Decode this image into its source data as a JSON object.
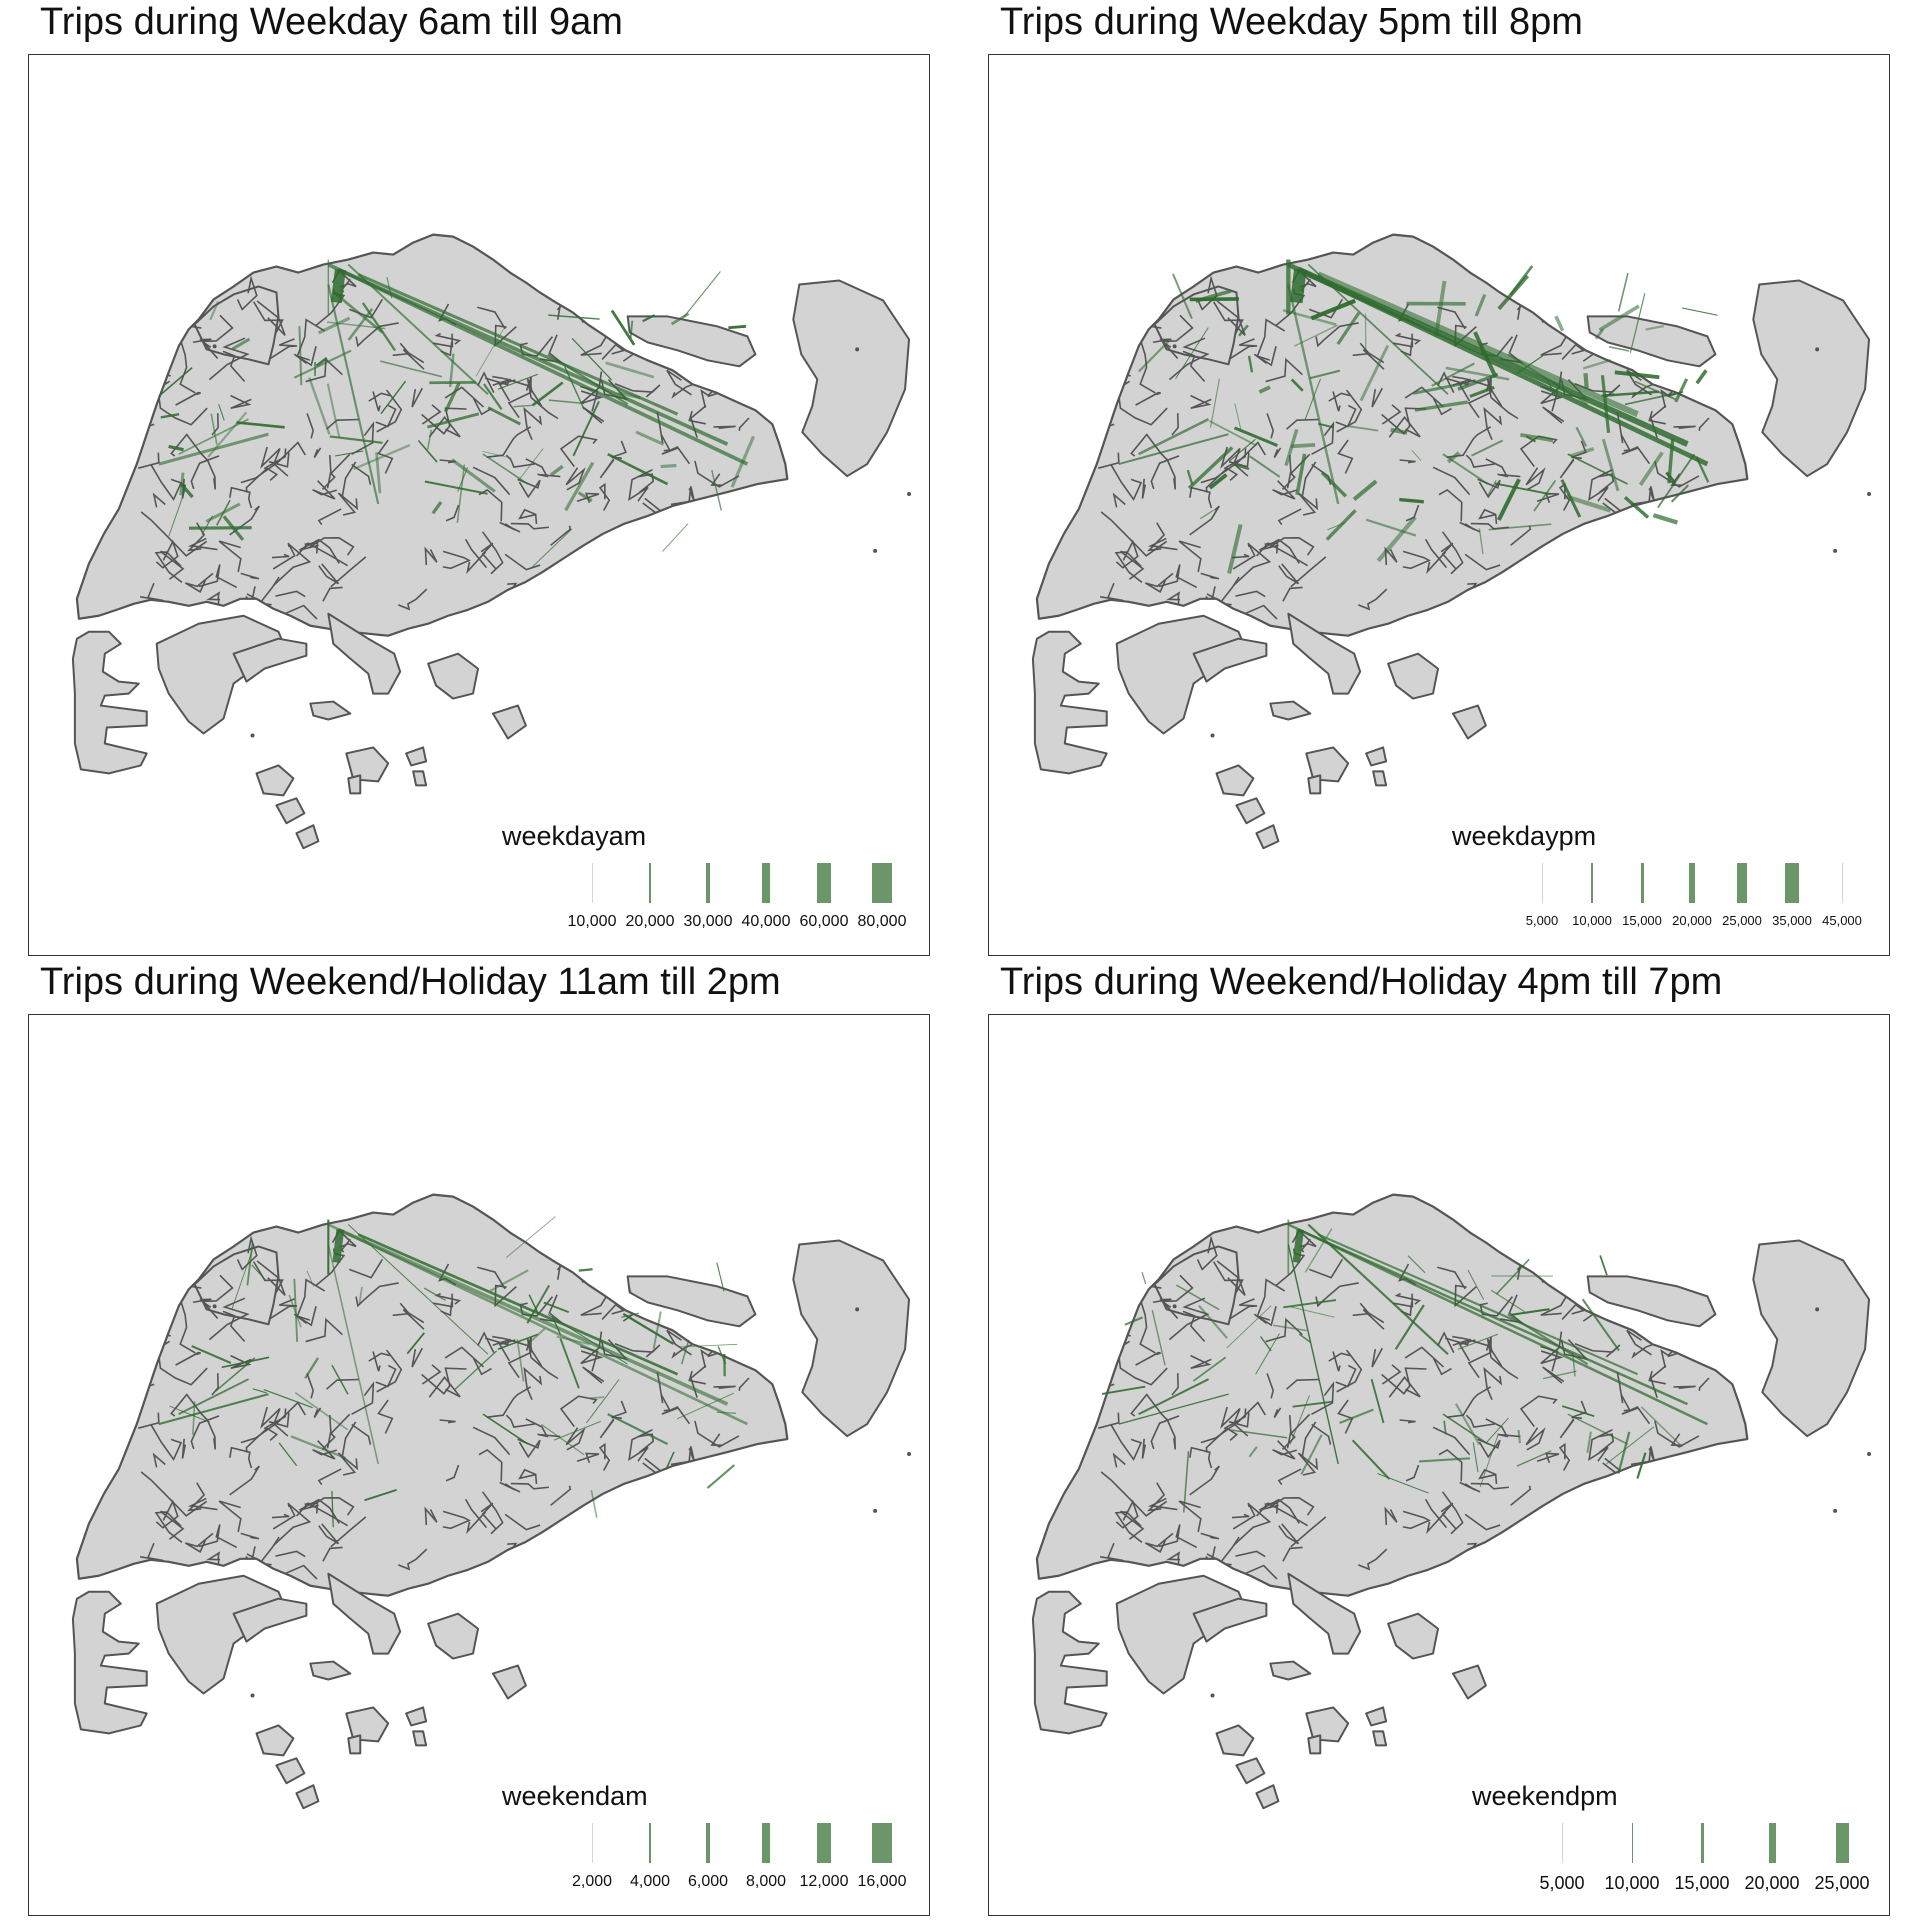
{
  "colors": {
    "land_fill": "#d3d3d3",
    "boundary": "#555555",
    "flow_line": "#2e6b2e",
    "legend_bar": "#6a966a"
  },
  "panels": [
    {
      "title": "Trips during Weekday 6am till 9am",
      "legend_title": "weekdayam",
      "legend_labels": [
        "10,000",
        "20,000",
        "30,000",
        "40,000",
        "60,000",
        "80,000"
      ],
      "legend_label_size": "normal",
      "flow_intensity": 1.0
    },
    {
      "title": "Trips during Weekday 5pm till 8pm",
      "legend_title": "weekdaypm",
      "legend_labels": [
        "5,000",
        "10,000",
        "15,000",
        "20,000",
        "25,000",
        "35,000",
        "45,000"
      ],
      "legend_label_size": "small",
      "flow_intensity": 1.4
    },
    {
      "title": "Trips during Weekend/Holiday 11am till 2pm",
      "legend_title": "weekendam",
      "legend_labels": [
        "2,000",
        "4,000",
        "6,000",
        "8,000",
        "12,000",
        "16,000"
      ],
      "legend_label_size": "normal",
      "flow_intensity": 0.6
    },
    {
      "title": "Trips during Weekend/Holiday 4pm till 7pm",
      "legend_title": "weekendpm",
      "legend_labels": [
        "5,000",
        "10,000",
        "15,000",
        "20,000",
        "25,000"
      ],
      "legend_label_size": "large",
      "flow_intensity": 0.55
    }
  ]
}
